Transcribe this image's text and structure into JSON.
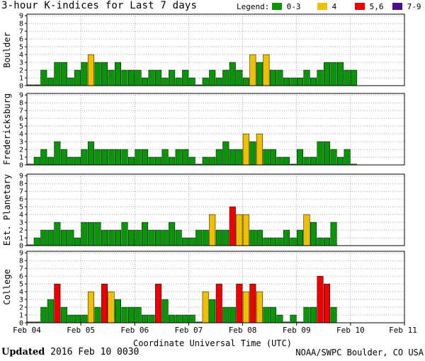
{
  "title": "3-hour K-indices for Last 7 days",
  "legend": {
    "label": "Legend:",
    "items": [
      {
        "label": "0-3",
        "color": "#089508"
      },
      {
        "label": "4",
        "color": "#f0c000"
      },
      {
        "label": "5,6",
        "color": "#ee0000"
      },
      {
        "label": "7-9",
        "color": "#4b0f8c"
      }
    ]
  },
  "footer": {
    "updated_label": "Updated",
    "updated_value": "2016 Feb 10 0030",
    "source": "NOAA/SWPC Boulder, CO USA"
  },
  "chart_data": {
    "type": "bar",
    "xlabel": "Coordinate Universal Time (UTC)",
    "ylim": [
      0,
      9
    ],
    "y_ticks": [
      0,
      1,
      2,
      3,
      4,
      5,
      6,
      7,
      8,
      9
    ],
    "x_tick_labels": [
      "Feb 04",
      "Feb 05",
      "Feb 06",
      "Feb 07",
      "Feb 08",
      "Feb 09",
      "Feb 10",
      "Feb 11"
    ],
    "bins_per_day": 8,
    "panels": [
      {
        "ylabel": "Boulder",
        "values": [
          0,
          0,
          2,
          1,
          3,
          3,
          1,
          2,
          3,
          4,
          3,
          3,
          2,
          3,
          2,
          2,
          2,
          1,
          2,
          2,
          1,
          2,
          1,
          2,
          1,
          0,
          1,
          2,
          1,
          2,
          3,
          2,
          1,
          4,
          3,
          4,
          2,
          2,
          1,
          1,
          1,
          2,
          1,
          2,
          3,
          3,
          3,
          2,
          2
        ]
      },
      {
        "ylabel": "Fredericksburg",
        "values": [
          0,
          1,
          2,
          1,
          3,
          2,
          1,
          1,
          2,
          3,
          2,
          2,
          2,
          2,
          2,
          1,
          2,
          2,
          1,
          1,
          2,
          1,
          2,
          2,
          1,
          0,
          1,
          1,
          2,
          3,
          2,
          2,
          4,
          3,
          4,
          2,
          2,
          1,
          1,
          0,
          2,
          1,
          1,
          3,
          3,
          2,
          1,
          2,
          0
        ]
      },
      {
        "ylabel": "Est. Planetary",
        "values": [
          0,
          1,
          2,
          2,
          3,
          2,
          2,
          1,
          3,
          3,
          3,
          2,
          2,
          2,
          3,
          2,
          2,
          3,
          2,
          2,
          2,
          3,
          2,
          1,
          1,
          2,
          2,
          4,
          2,
          2,
          5,
          4,
          4,
          2,
          2,
          1,
          1,
          1,
          2,
          1,
          2,
          4,
          3,
          1,
          1,
          3
        ]
      },
      {
        "ylabel": "College",
        "values": [
          0,
          0,
          2,
          3,
          5,
          2,
          1,
          1,
          1,
          4,
          2,
          5,
          4,
          3,
          2,
          2,
          2,
          1,
          1,
          5,
          3,
          1,
          1,
          1,
          1,
          0,
          4,
          3,
          5,
          2,
          2,
          5,
          4,
          5,
          4,
          2,
          2,
          1,
          0,
          1,
          0,
          2,
          2,
          6,
          5,
          2
        ]
      }
    ]
  }
}
